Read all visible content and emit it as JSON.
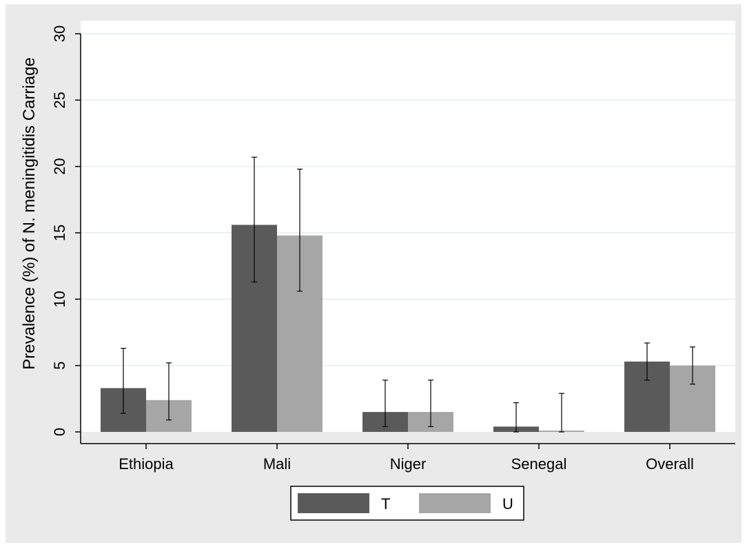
{
  "colors": {
    "outer_background": "#eaeaea",
    "plot_background": "#ffffff",
    "gridline": "#e3eef3",
    "series_T": "#5a5a5a",
    "series_U": "#a6a6a6",
    "axis": "#000000"
  },
  "chart_data": {
    "type": "bar",
    "title": "",
    "xlabel": "",
    "ylabel": "Prevalence (%) of N. meningitidis Carriage",
    "ylim": [
      0,
      30
    ],
    "yticks": [
      "0",
      "5",
      "10",
      "15",
      "20",
      "25",
      "30"
    ],
    "grid": true,
    "legend_position": "bottom",
    "categories": [
      "Ethiopia",
      "Mali",
      "Niger",
      "Senegal",
      "Overall"
    ],
    "series": [
      {
        "name": "T",
        "values": [
          3.3,
          15.6,
          1.5,
          0.4,
          5.3
        ],
        "ci_low": [
          1.4,
          11.3,
          0.4,
          0.0,
          3.9
        ],
        "ci_high": [
          6.3,
          20.7,
          3.9,
          2.2,
          6.7
        ]
      },
      {
        "name": "U",
        "values": [
          2.4,
          14.8,
          1.5,
          0.1,
          5.0
        ],
        "ci_low": [
          0.9,
          10.6,
          0.4,
          0.0,
          3.6
        ],
        "ci_high": [
          5.2,
          19.8,
          3.9,
          2.9,
          6.4
        ]
      }
    ]
  }
}
